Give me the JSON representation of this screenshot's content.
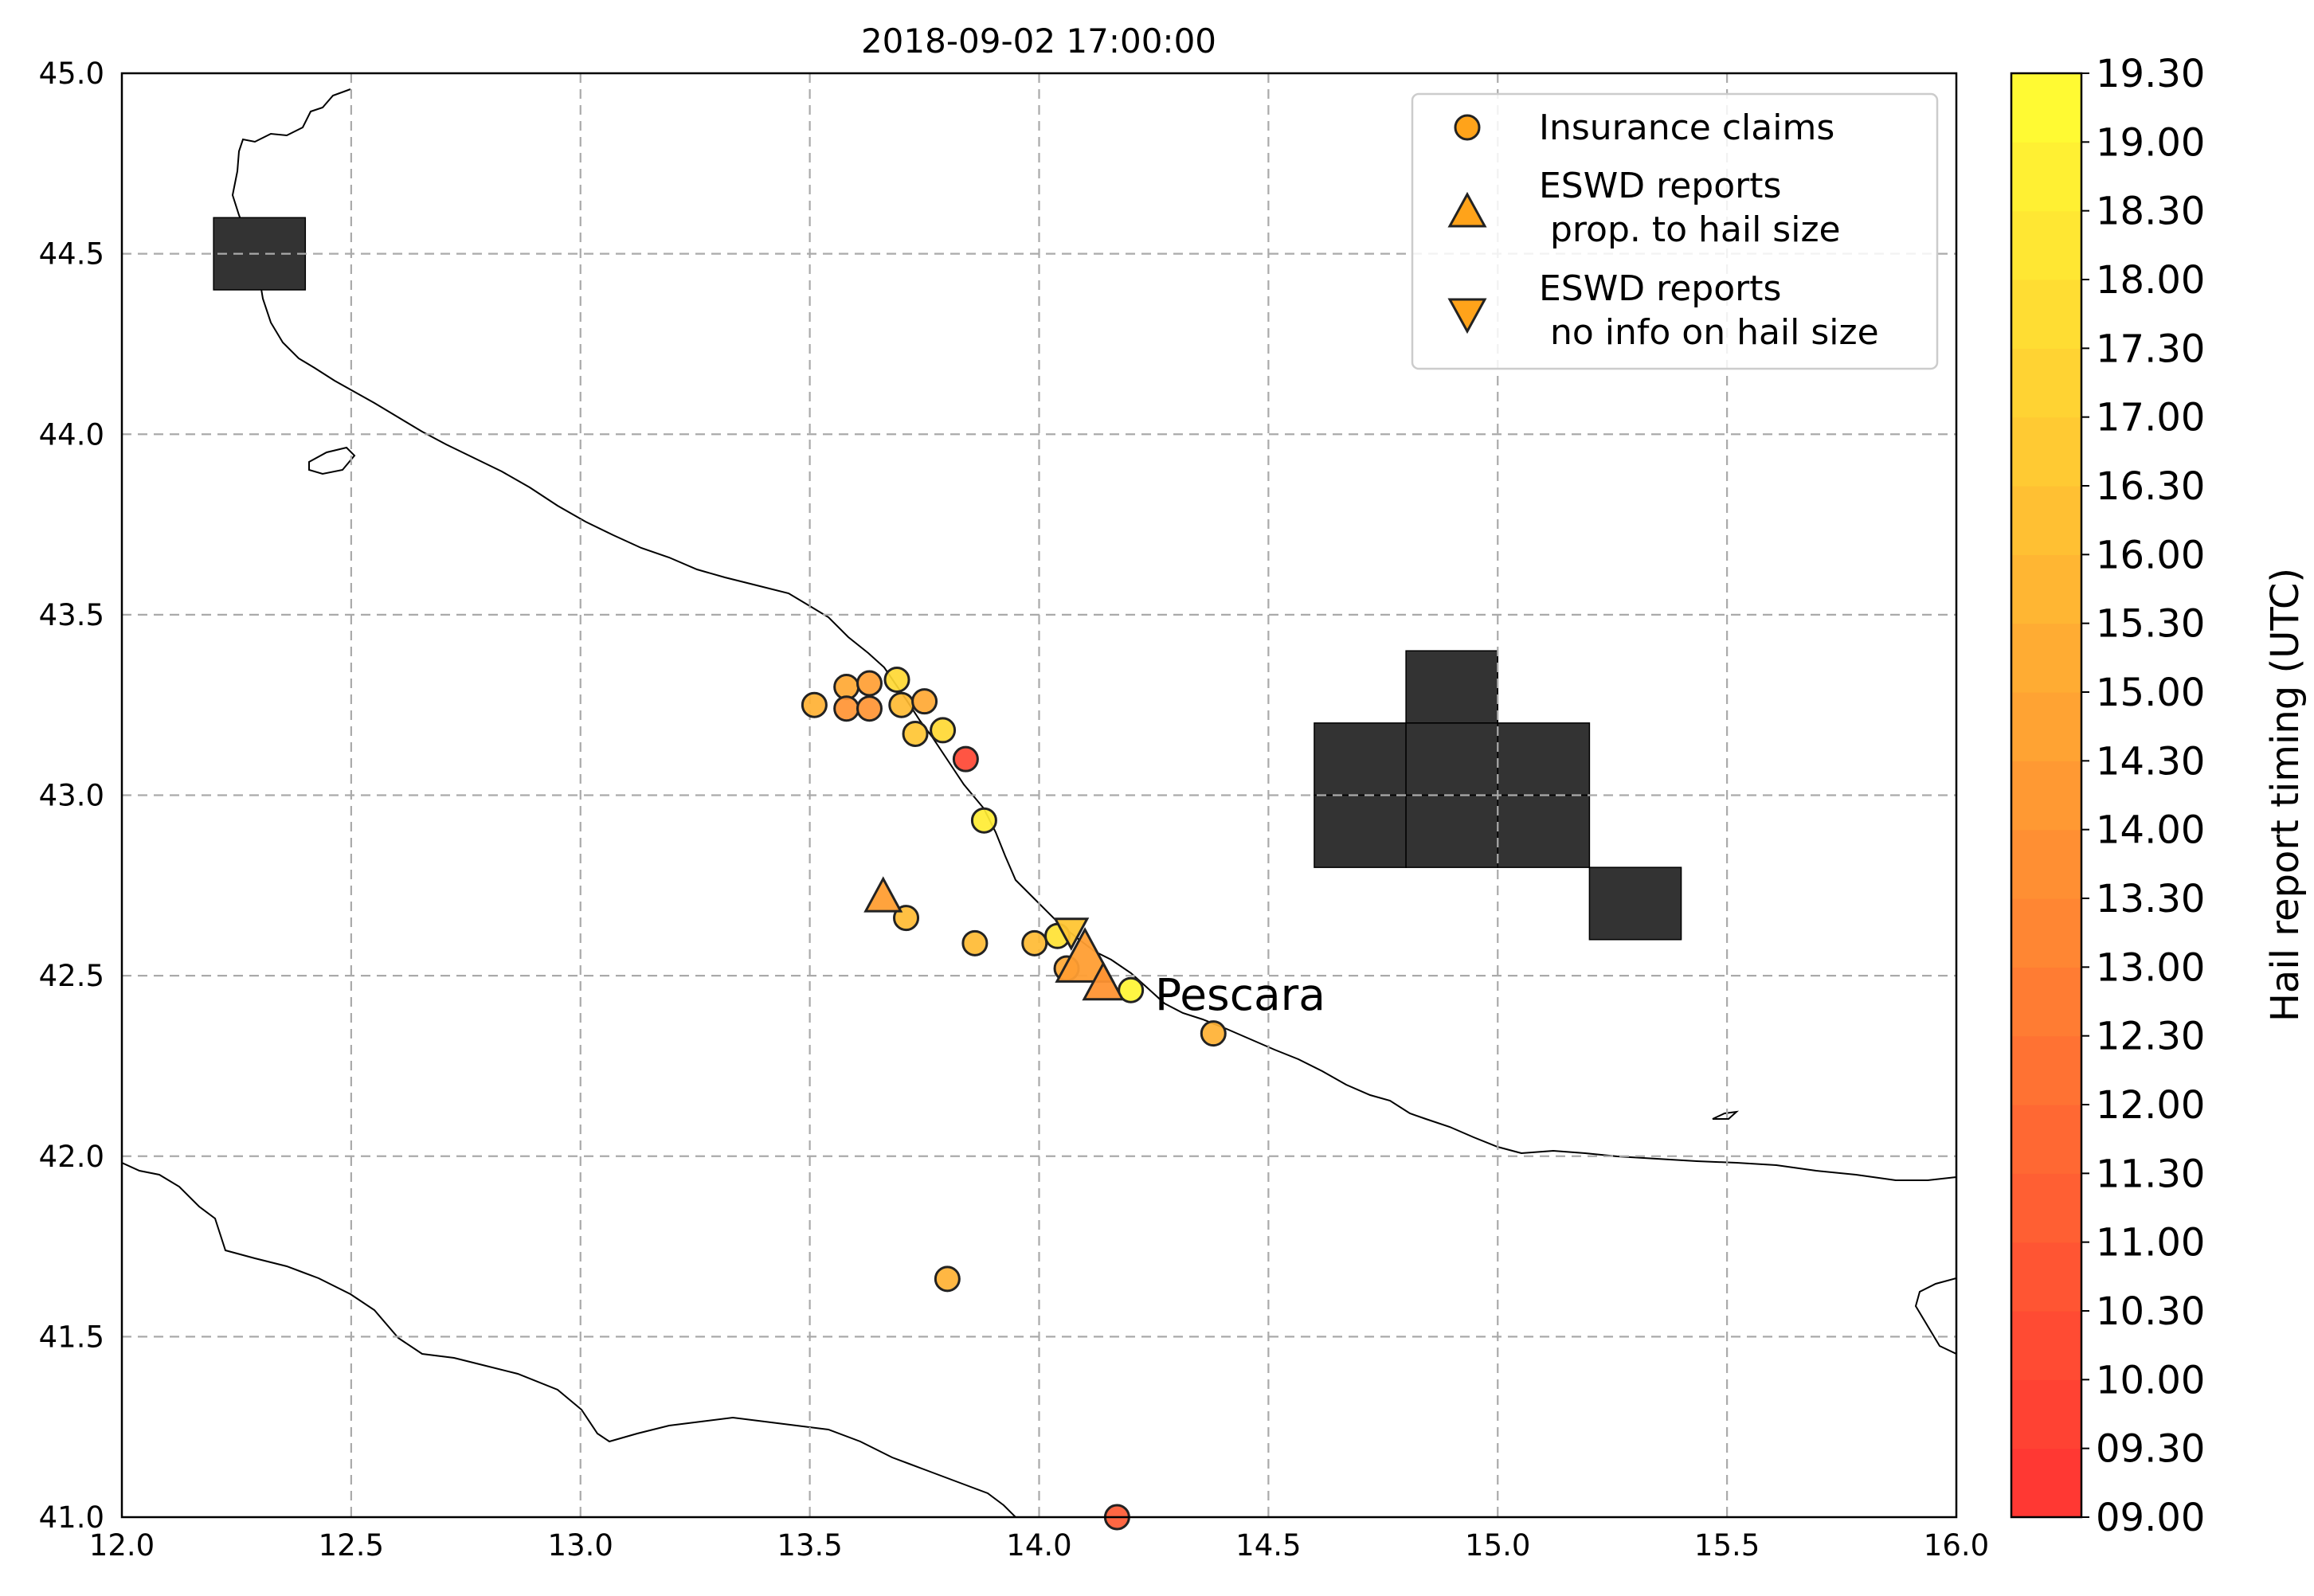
{
  "title": "2018-09-02 17:00:00",
  "place_label": "Pescara",
  "legend": {
    "items": [
      {
        "marker": "circle",
        "lines": [
          "Insurance claims"
        ]
      },
      {
        "marker": "triangle-up",
        "lines": [
          "ESWD reports",
          " prop. to hail size"
        ]
      },
      {
        "marker": "triangle-down",
        "lines": [
          "ESWD reports",
          " no info on hail size"
        ]
      }
    ],
    "placement": "upper right"
  },
  "colorbar": {
    "label": "Hail report timing (UTC)",
    "ticks": [
      "09.00",
      "09.30",
      "10.00",
      "10.30",
      "11.00",
      "11.30",
      "12.00",
      "12.30",
      "13.00",
      "13.30",
      "14.00",
      "14.30",
      "15.00",
      "15.30",
      "16.00",
      "16.30",
      "17.00",
      "17.30",
      "18.00",
      "18.30",
      "19.00",
      "19.30"
    ],
    "color_low": "#ff3333",
    "color_high": "#ffff33"
  },
  "chart_data": {
    "type": "scatter",
    "title": "2018-09-02 17:00:00",
    "xlim": [
      12.0,
      16.0
    ],
    "ylim": [
      41.0,
      45.0
    ],
    "xticks": [
      "12.0",
      "12.5",
      "13.0",
      "13.5",
      "14.0",
      "14.5",
      "15.0",
      "15.5",
      "16.0"
    ],
    "yticks": [
      "41.0",
      "41.5",
      "42.0",
      "42.5",
      "43.0",
      "43.5",
      "44.0",
      "44.5",
      "45.0"
    ],
    "grid": true,
    "radar_cells_color": "#333333",
    "radar_cells": [
      {
        "lon0": 12.2,
        "lon1": 12.4,
        "lat0": 44.4,
        "lat1": 44.6
      },
      {
        "lon0": 14.8,
        "lon1": 15.0,
        "lat0": 43.2,
        "lat1": 43.4
      },
      {
        "lon0": 14.6,
        "lon1": 14.8,
        "lat0": 43.0,
        "lat1": 43.2
      },
      {
        "lon0": 14.8,
        "lon1": 15.0,
        "lat0": 43.0,
        "lat1": 43.2
      },
      {
        "lon0": 15.0,
        "lon1": 15.2,
        "lat0": 43.0,
        "lat1": 43.2
      },
      {
        "lon0": 14.6,
        "lon1": 14.8,
        "lat0": 42.8,
        "lat1": 43.0
      },
      {
        "lon0": 14.8,
        "lon1": 15.0,
        "lat0": 42.8,
        "lat1": 43.0
      },
      {
        "lon0": 15.0,
        "lon1": 15.2,
        "lat0": 42.8,
        "lat1": 43.0
      },
      {
        "lon0": 15.2,
        "lon1": 15.4,
        "lat0": 42.6,
        "lat1": 42.8
      }
    ],
    "series": [
      {
        "name": "Insurance claims",
        "marker": "circle",
        "points": [
          {
            "lon": 13.51,
            "lat": 43.25,
            "time": 15.5
          },
          {
            "lon": 13.58,
            "lat": 43.3,
            "time": 15.0
          },
          {
            "lon": 13.58,
            "lat": 43.24,
            "time": 14.0
          },
          {
            "lon": 13.63,
            "lat": 43.31,
            "time": 14.5
          },
          {
            "lon": 13.63,
            "lat": 43.24,
            "time": 14.0
          },
          {
            "lon": 13.69,
            "lat": 43.32,
            "time": 17.5
          },
          {
            "lon": 13.7,
            "lat": 43.25,
            "time": 16.0
          },
          {
            "lon": 13.75,
            "lat": 43.26,
            "time": 15.0
          },
          {
            "lon": 13.73,
            "lat": 43.17,
            "time": 16.5
          },
          {
            "lon": 13.79,
            "lat": 43.18,
            "time": 17.5
          },
          {
            "lon": 13.84,
            "lat": 43.1,
            "time": 10.0
          },
          {
            "lon": 13.88,
            "lat": 42.93,
            "time": 18.5
          },
          {
            "lon": 13.71,
            "lat": 42.66,
            "time": 16.0
          },
          {
            "lon": 13.86,
            "lat": 42.59,
            "time": 16.0
          },
          {
            "lon": 13.99,
            "lat": 42.59,
            "time": 16.0
          },
          {
            "lon": 14.04,
            "lat": 42.61,
            "time": 18.0
          },
          {
            "lon": 14.06,
            "lat": 42.52,
            "time": 15.0
          },
          {
            "lon": 14.2,
            "lat": 42.46,
            "time": 19.0
          },
          {
            "lon": 14.38,
            "lat": 42.34,
            "time": 15.5
          },
          {
            "lon": 13.8,
            "lat": 41.66,
            "time": 15.5
          },
          {
            "lon": 14.17,
            "lat": 41.0,
            "time": 11.0
          }
        ]
      },
      {
        "name": "ESWD reports prop. to hail size",
        "marker": "triangle-up",
        "points": [
          {
            "lon": 13.66,
            "lat": 42.72,
            "time": 14.5,
            "size": 1.0
          },
          {
            "lon": 14.1,
            "lat": 42.55,
            "time": 14.5,
            "size": 1.6
          },
          {
            "lon": 14.14,
            "lat": 42.48,
            "time": 14.0,
            "size": 1.1
          }
        ]
      },
      {
        "name": "ESWD reports no info on hail size",
        "marker": "triangle-down",
        "points": [
          {
            "lon": 14.07,
            "lat": 42.62,
            "time": 16.5
          }
        ]
      }
    ]
  }
}
